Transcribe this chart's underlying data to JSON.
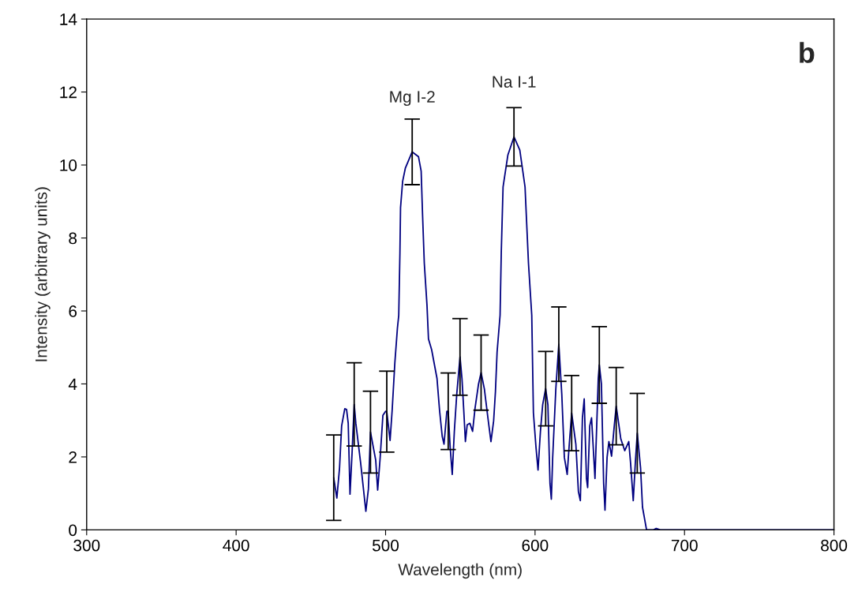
{
  "chart_data": {
    "type": "line",
    "xlabel": "Wavelength (nm)",
    "ylabel": "Intensity (arbitrary units)",
    "xlim": [
      300,
      800
    ],
    "xticks": [
      300,
      400,
      500,
      600,
      700,
      800
    ],
    "ylim": [
      0,
      14
    ],
    "yticks": [
      0,
      2,
      4,
      6,
      8,
      10,
      12,
      14
    ],
    "grid": false,
    "legend": false,
    "marker": "none",
    "line_style": "solid",
    "annotations": [
      {
        "text": "Mg I-2",
        "x": 517.8,
        "y": 10.36
      },
      {
        "text": "Na I-1",
        "x": 585.9,
        "y": 10.77
      },
      "b"
    ],
    "series": [
      {
        "color": "#000080",
        "x": [
          465.3,
          467.4,
          469.2,
          470.6,
          472.7,
          473.9,
          475.0,
          476.2,
          477.6,
          479.0,
          480.1,
          483.3,
          486.8,
          488.5,
          489.9,
          493.4,
          494.7,
          496.4,
          498.2,
          500.0,
          500.8,
          503.0,
          504.4,
          506.2,
          507.9,
          508.8,
          509.6,
          510.0,
          511.4,
          513.2,
          517.8,
          522.0,
          523.8,
          524.7,
          525.9,
          527.7,
          528.7,
          530.8,
          534.4,
          536.1,
          537.9,
          539.1,
          541.0,
          541.9,
          543.2,
          544.6,
          546.0,
          547.6,
          549.8,
          551.1,
          552.3,
          553.4,
          554.6,
          556.4,
          558.2,
          559.9,
          562.2,
          563.9,
          566.1,
          568.7,
          570.5,
          572.3,
          573.5,
          574.6,
          576.6,
          577.4,
          578.6,
          581.8,
          585.9,
          589.8,
          593.3,
          595.6,
          597.8,
          598.9,
          600.6,
          602.0,
          603.6,
          605.1,
          607.1,
          608.6,
          610.0,
          610.9,
          611.8,
          613.9,
          615.9,
          617.9,
          619.6,
          621.5,
          622.9,
          624.5,
          627.3,
          629.0,
          630.3,
          631.7,
          632.9,
          634.4,
          635.2,
          636.6,
          637.8,
          638.8,
          640.1,
          642.3,
          643.0,
          644.4,
          645.9,
          646.8,
          648.2,
          649.4,
          651.2,
          653.0,
          654.3,
          657.4,
          660.0,
          662.7,
          663.9,
          665.7,
          667.1,
          668.4,
          670.6,
          671.9,
          674.6,
          679.3,
          681.1,
          683.7,
          800
        ],
        "values": [
          1.43,
          0.87,
          1.7,
          2.85,
          3.32,
          3.3,
          2.92,
          0.98,
          2.13,
          3.44,
          2.92,
          1.84,
          0.51,
          1.12,
          2.68,
          1.91,
          1.09,
          1.99,
          3.14,
          3.25,
          3.24,
          2.45,
          3.28,
          4.58,
          5.52,
          5.88,
          7.6,
          8.83,
          9.55,
          9.91,
          10.36,
          10.23,
          9.83,
          8.68,
          7.31,
          6.16,
          5.23,
          4.94,
          4.15,
          3.28,
          2.56,
          2.35,
          3.25,
          3.25,
          2.27,
          1.52,
          2.7,
          3.71,
          4.74,
          4.15,
          3.28,
          2.42,
          2.88,
          2.92,
          2.7,
          3.35,
          4.0,
          4.31,
          3.86,
          2.99,
          2.42,
          2.99,
          3.79,
          4.87,
          5.88,
          7.6,
          9.4,
          10.27,
          10.77,
          10.41,
          9.4,
          7.31,
          5.88,
          3.21,
          2.28,
          1.64,
          2.7,
          3.43,
          3.87,
          3.43,
          1.27,
          0.84,
          1.99,
          3.86,
          5.09,
          3.71,
          1.99,
          1.52,
          2.35,
          3.2,
          2.35,
          1.05,
          0.8,
          3.07,
          3.59,
          1.41,
          1.16,
          2.85,
          3.07,
          2.35,
          1.41,
          4.15,
          4.52,
          4.0,
          1.27,
          0.54,
          1.99,
          2.42,
          2.02,
          2.85,
          3.39,
          2.49,
          2.17,
          2.42,
          1.84,
          0.8,
          1.84,
          2.65,
          1.7,
          0.62,
          0,
          0,
          0.04,
          0,
          0
        ],
        "errors": [
          1.17,
          null,
          null,
          null,
          null,
          null,
          null,
          null,
          null,
          1.14,
          null,
          null,
          null,
          null,
          1.12,
          null,
          null,
          null,
          null,
          null,
          1.11,
          null,
          null,
          null,
          null,
          null,
          null,
          null,
          null,
          null,
          0.9,
          null,
          null,
          null,
          null,
          null,
          null,
          null,
          null,
          null,
          null,
          null,
          null,
          1.05,
          null,
          null,
          null,
          null,
          1.05,
          null,
          null,
          null,
          null,
          null,
          null,
          null,
          null,
          1.03,
          null,
          null,
          null,
          null,
          null,
          null,
          null,
          null,
          null,
          null,
          0.8,
          null,
          null,
          null,
          null,
          null,
          null,
          null,
          null,
          null,
          1.02,
          null,
          null,
          null,
          null,
          null,
          1.02,
          null,
          null,
          null,
          null,
          1.03,
          null,
          null,
          null,
          null,
          null,
          null,
          null,
          null,
          null,
          null,
          null,
          null,
          1.05,
          null,
          null,
          null,
          null,
          null,
          null,
          null,
          1.06,
          null,
          null,
          null,
          null,
          null,
          null,
          1.09,
          null,
          null,
          null,
          null,
          null,
          null,
          null
        ]
      }
    ]
  }
}
